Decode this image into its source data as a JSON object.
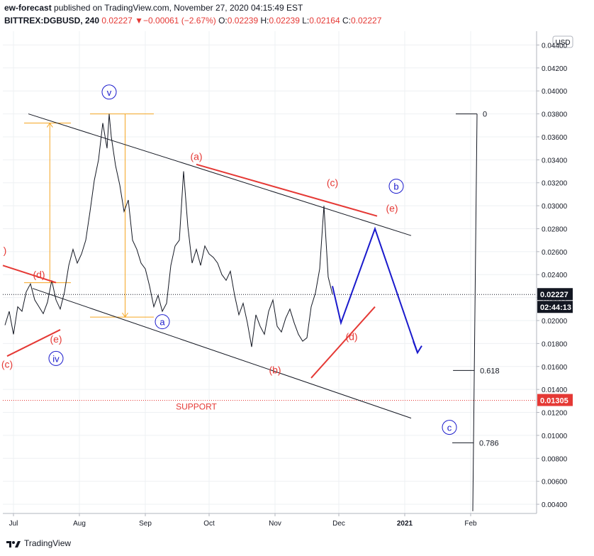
{
  "header": {
    "author": "ew-forecast",
    "published": "published on TradingView.com, November 27, 2020 04:15:49 EST",
    "symbol": "BITTREX:DGBUSD, 240",
    "last": "0.02227",
    "arrow": "▼",
    "change": "−0.00061 (−2.67%)",
    "o_label": "O:",
    "o": "0.02239",
    "h_label": "H:",
    "h": "0.02239",
    "l_label": "L:",
    "l": "0.02164",
    "c_label": "C:",
    "c": "0.02227"
  },
  "footer": {
    "brand": "TradingView"
  },
  "colors": {
    "blue": "#1a1acc",
    "red": "#e53935",
    "orange": "#f5a623",
    "black": "#131722",
    "grid": "#eef0f3"
  },
  "chart_data": {
    "type": "line",
    "title": "BITTREX:DGBUSD, 240",
    "currency": "USD",
    "ylim": [
      0.0032,
      0.0452
    ],
    "y_ticks": [
      "0.04400",
      "0.04200",
      "0.04000",
      "0.03800",
      "0.03600",
      "0.03400",
      "0.03200",
      "0.03000",
      "0.02800",
      "0.02600",
      "0.02400",
      "0.02200",
      "0.02000",
      "0.01800",
      "0.01600",
      "0.01400",
      "0.01200",
      "0.01000",
      "0.00800",
      "0.00600",
      "0.00400"
    ],
    "x_ticks": [
      "Jul",
      "Aug",
      "Sep",
      "Oct",
      "Nov",
      "Dec",
      "2021",
      "Feb"
    ],
    "x_tick_days": [
      0,
      31,
      62,
      92,
      123,
      153,
      184,
      215
    ],
    "xlim_days": [
      -5,
      246
    ],
    "price_series": {
      "name": "DGBUSD",
      "x_days": [
        -4,
        -2,
        0,
        2,
        4,
        6,
        8,
        10,
        12,
        14,
        16,
        18,
        20,
        22,
        24,
        26,
        28,
        30,
        32,
        34,
        36,
        38,
        40,
        42,
        44,
        45,
        46,
        48,
        50,
        52,
        54,
        56,
        58,
        60,
        62,
        64,
        66,
        68,
        70,
        72,
        74,
        76,
        78,
        80,
        82,
        84,
        86,
        88,
        90,
        92,
        94,
        96,
        98,
        100,
        102,
        104,
        106,
        108,
        110,
        112,
        114,
        116,
        118,
        120,
        122,
        124,
        126,
        128,
        130,
        132,
        134,
        136,
        138,
        140,
        142,
        144,
        146,
        148,
        150
      ],
      "values": [
        0.0196,
        0.0208,
        0.0188,
        0.0212,
        0.0208,
        0.0225,
        0.0232,
        0.0218,
        0.0212,
        0.0206,
        0.0216,
        0.0235,
        0.0218,
        0.021,
        0.0225,
        0.0248,
        0.0262,
        0.025,
        0.0258,
        0.027,
        0.0295,
        0.0322,
        0.034,
        0.0372,
        0.035,
        0.038,
        0.036,
        0.0335,
        0.0318,
        0.0295,
        0.0305,
        0.027,
        0.0262,
        0.025,
        0.0245,
        0.023,
        0.0212,
        0.0222,
        0.0208,
        0.0215,
        0.0248,
        0.0265,
        0.027,
        0.033,
        0.0282,
        0.025,
        0.0262,
        0.0248,
        0.0265,
        0.0258,
        0.0255,
        0.025,
        0.024,
        0.0235,
        0.0243,
        0.0222,
        0.0205,
        0.0215,
        0.0198,
        0.0177,
        0.0205,
        0.0195,
        0.0188,
        0.0208,
        0.0218,
        0.0195,
        0.019,
        0.0202,
        0.021,
        0.0198,
        0.0188,
        0.0182,
        0.0185,
        0.0212,
        0.0224,
        0.0245,
        0.03,
        0.0238,
        0.0223
      ]
    },
    "current_price": {
      "value": 0.02227,
      "label": "0.02227",
      "countdown": "02:44:13"
    },
    "support": {
      "value": 0.01305,
      "label": "0.01305",
      "text": "SUPPORT"
    },
    "trend_lines": [
      {
        "name": "channel-upper",
        "color": "black",
        "points": [
          [
            7,
            0.038
          ],
          [
            187,
            0.0274
          ]
        ]
      },
      {
        "name": "channel-lower",
        "color": "black",
        "points": [
          [
            9,
            0.0228
          ],
          [
            187,
            0.0115
          ]
        ]
      },
      {
        "name": "wave-ac-line",
        "color": "red",
        "points": [
          [
            86,
            0.0336
          ],
          [
            171,
            0.0291
          ]
        ]
      },
      {
        "name": "wave-bd-line",
        "color": "red",
        "points": [
          [
            140,
            0.015
          ],
          [
            170,
            0.0212
          ]
        ]
      },
      {
        "name": "left-d-line",
        "color": "red",
        "points": [
          [
            -5,
            0.0248
          ],
          [
            20,
            0.0233
          ]
        ]
      },
      {
        "name": "left-ce-line",
        "color": "red",
        "points": [
          [
            -3,
            0.0169
          ],
          [
            22,
            0.0192
          ]
        ]
      }
    ],
    "forecast_path": {
      "x_days": [
        150,
        154,
        170,
        190,
        188,
        190,
        192
      ],
      "values": [
        0.023,
        0.0198,
        0.028,
        0.0172,
        0.0182,
        0.0172,
        0.0178
      ]
    },
    "fibonacci": {
      "levels": [
        {
          "ratio": "0",
          "value": 0.038
        },
        {
          "ratio": "0.618",
          "value": 0.01565
        },
        {
          "ratio": "0.786",
          "value": 0.00935
        }
      ],
      "line": [
        [
          218,
          0.038
        ],
        [
          216,
          0.0034
        ]
      ]
    },
    "measure_tools": [
      {
        "start_day": 5,
        "end_day": 27,
        "top": 0.0372,
        "bottom": 0.0233
      },
      {
        "start_day": 36,
        "end_day": 66,
        "top": 0.038,
        "bottom": 0.0203
      }
    ],
    "wave_labels": [
      {
        "text": "v",
        "day": 45,
        "value": 0.0399,
        "color": "blue",
        "circled": true
      },
      {
        "text": "a",
        "day": 70,
        "value": 0.0199,
        "color": "blue",
        "circled": true
      },
      {
        "text": "iv",
        "day": 20,
        "value": 0.0167,
        "color": "blue",
        "circled": true
      },
      {
        "text": "b",
        "day": 180,
        "value": 0.0317,
        "color": "blue",
        "circled": true
      },
      {
        "text": "c",
        "day": 205,
        "value": 0.0107,
        "color": "blue",
        "circled": true
      },
      {
        "text": "(a)",
        "day": 86,
        "value": 0.0343,
        "color": "red",
        "circled": false
      },
      {
        "text": "(c)",
        "day": 150,
        "value": 0.032,
        "color": "red",
        "circled": false
      },
      {
        "text": "(e)",
        "day": 178,
        "value": 0.0298,
        "color": "red",
        "circled": false
      },
      {
        "text": "(d)",
        "day": 159,
        "value": 0.0186,
        "color": "red",
        "circled": false
      },
      {
        "text": "(b)",
        "day": 123,
        "value": 0.0157,
        "color": "red",
        "circled": false
      },
      {
        "text": "(d)",
        "day": 12,
        "value": 0.024,
        "color": "red",
        "circled": false
      },
      {
        "text": "(e)",
        "day": 20,
        "value": 0.0184,
        "color": "red",
        "circled": false
      },
      {
        "text": "(c)",
        "day": -3,
        "value": 0.0162,
        "color": "red",
        "circled": false
      },
      {
        "text": ")",
        "day": -4,
        "value": 0.0261,
        "color": "red",
        "circled": false
      }
    ]
  }
}
